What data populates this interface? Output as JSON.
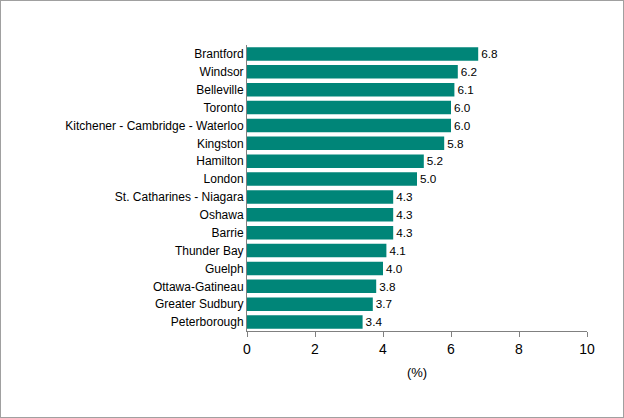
{
  "chart_data": {
    "type": "bar",
    "orientation": "horizontal",
    "categories": [
      "Brantford",
      "Windsor",
      "Belleville",
      "Toronto",
      "Kitchener - Cambridge - Waterloo",
      "Kingston",
      "Hamilton",
      "London",
      "St. Catharines - Niagara",
      "Oshawa",
      "Barrie",
      "Thunder Bay",
      "Guelph",
      "Ottawa-Gatineau",
      "Greater Sudbury",
      "Peterborough"
    ],
    "values": [
      6.8,
      6.2,
      6.1,
      6.0,
      6.0,
      5.8,
      5.2,
      5.0,
      4.3,
      4.3,
      4.3,
      4.1,
      4.0,
      3.8,
      3.7,
      3.4
    ],
    "value_labels": [
      "6.8",
      "6.2",
      "6.1",
      "6.0",
      "6.0",
      "5.8",
      "5.2",
      "5.0",
      "4.3",
      "4.3",
      "4.3",
      "4.1",
      "4.0",
      "3.8",
      "3.7",
      "3.4"
    ],
    "data_labels": true,
    "color": "#008578",
    "x_label": "(%)",
    "xlim": [
      0,
      10
    ],
    "xticks": [
      0,
      2,
      4,
      6,
      8,
      10
    ],
    "grid": false
  }
}
